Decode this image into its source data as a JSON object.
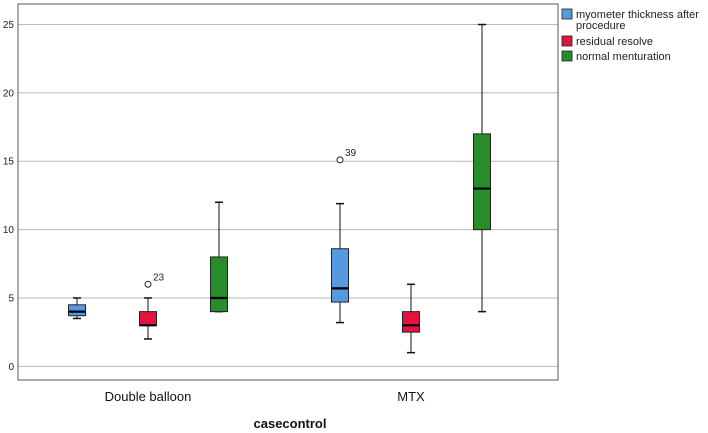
{
  "chart_data": {
    "type": "boxplot",
    "title": "",
    "xlabel": "casecontrol",
    "ylabel": "",
    "ylim": [
      -1,
      26.5
    ],
    "yticks": [
      0,
      5,
      10,
      15,
      20,
      25
    ],
    "categories": [
      "Double balloon",
      "MTX"
    ],
    "legend_position": "top-right",
    "series": [
      {
        "name": "myometer thickness after procedure",
        "legend_lines": [
          "myometer thickness after",
          "procedure"
        ],
        "color": "#5799e0",
        "boxes": [
          {
            "min": 3.5,
            "q1": 3.7,
            "median": 4.0,
            "q3": 4.5,
            "max": 5.0,
            "outliers": []
          },
          {
            "min": 3.2,
            "q1": 4.7,
            "median": 5.7,
            "q3": 8.6,
            "max": 11.9,
            "outliers": [
              {
                "value": 15.1,
                "label": "39"
              }
            ]
          }
        ]
      },
      {
        "name": "residual resolve",
        "legend_lines": [
          "residual resolve"
        ],
        "color": "#e0143f",
        "boxes": [
          {
            "min": 2.0,
            "q1": 3.0,
            "median": 3.0,
            "q3": 4.0,
            "max": 5.0,
            "outliers": [
              {
                "value": 6.0,
                "label": "23"
              }
            ]
          },
          {
            "min": 1.0,
            "q1": 2.5,
            "median": 3.0,
            "q3": 4.0,
            "max": 6.0,
            "outliers": []
          }
        ]
      },
      {
        "name": "normal menturation",
        "legend_lines": [
          "normal menturation"
        ],
        "color": "#288c2a",
        "boxes": [
          {
            "min": 4.0,
            "q1": 4.0,
            "median": 5.0,
            "q3": 8.0,
            "max": 12.0,
            "outliers": []
          },
          {
            "min": 4.0,
            "q1": 10.0,
            "median": 13.0,
            "q3": 17.0,
            "max": 25.0,
            "outliers": []
          }
        ]
      }
    ]
  }
}
